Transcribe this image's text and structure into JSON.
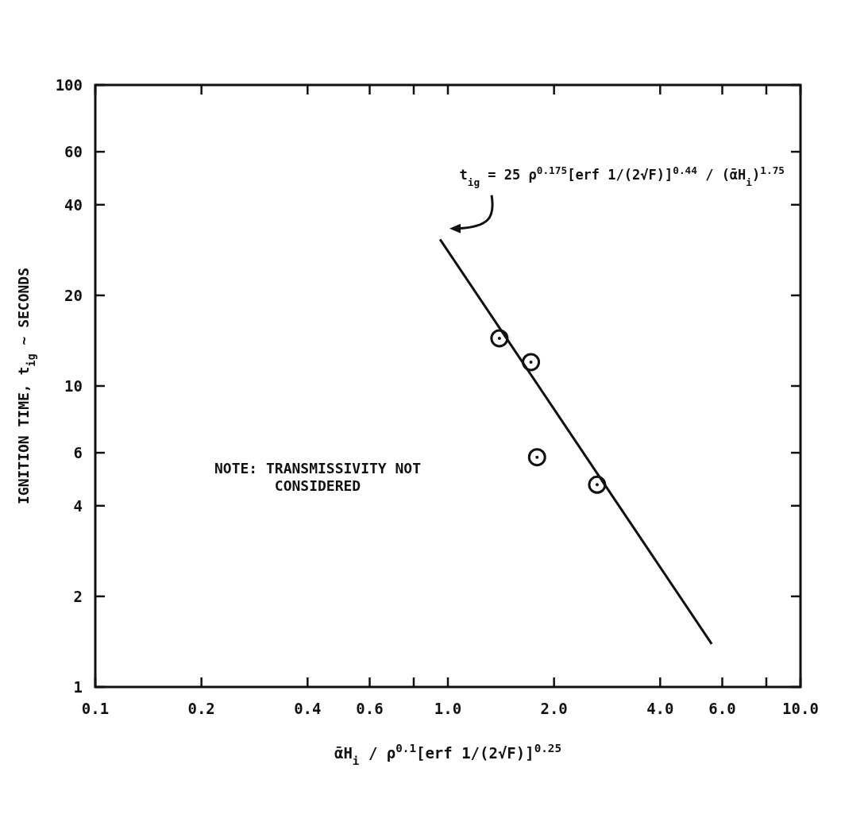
{
  "chart_data": {
    "type": "scatter",
    "xlabel": "ᾱH$_{i}$ / ρ$^{0.1}$[erf 1/(2√F)]$^{0.25}$",
    "ylabel": "IGNITION TIME, t$_{ig}$ ~ SECONDS",
    "log": "xy",
    "grid": false,
    "xlim": [
      0.1,
      10
    ],
    "ylim": [
      1,
      100
    ],
    "xticks": [
      0.1,
      0.2,
      0.4,
      0.6,
      {
        "value": 0.8,
        "label": null
      },
      {
        "value": 1,
        "label": "1.0"
      },
      {
        "value": 2,
        "label": "2.0"
      },
      {
        "value": 4,
        "label": "4.0"
      },
      {
        "value": 6,
        "label": "6.0"
      },
      {
        "value": 8,
        "label": null
      },
      {
        "value": 10,
        "label": "10.0"
      }
    ],
    "yticks": [
      1,
      2,
      4,
      6,
      10,
      20,
      40,
      60,
      100
    ],
    "series": [
      {
        "color": "#111111",
        "marker": "circle",
        "x": [
          1.4,
          1.72,
          1.79,
          2.65
        ],
        "values": [
          14.4,
          12.0,
          5.8,
          4.7
        ]
      },
      {
        "type": "line",
        "color": "#111111",
        "marker": "none",
        "line_style": "solid",
        "x": [
          0.95,
          5.6
        ],
        "values": [
          30.7,
          1.39
        ]
      }
    ],
    "annotations": [
      "t$_{ig}$ = 25 ρ$^{0.175}$[erf 1/(2√F)]$^{0.44}$ / (ᾱH$_{i}$)$^{1.75}$",
      "NOTE:  TRANSMISSIVITY NOT\nCONSIDERED"
    ]
  }
}
